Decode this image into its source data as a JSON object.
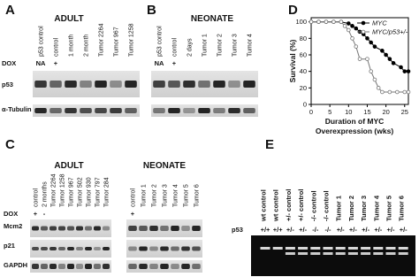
{
  "panels": {
    "A": {
      "label": "A",
      "title": "ADULT",
      "lanes": [
        "p53 control",
        "control",
        "1 month",
        "2 month",
        "Tumor 2264",
        "Tumor 967",
        "Tumor 1258"
      ],
      "rows": [
        "DOX",
        "p53",
        "α-Tubulin"
      ],
      "dox": [
        "NA",
        "+"
      ]
    },
    "B": {
      "label": "B",
      "title": "NEONATE",
      "lanes": [
        "p53 control",
        "control",
        "2 days",
        "Tumor 1",
        "Tumor 2",
        "Tumor 3",
        "Tumor 4"
      ],
      "rows": [
        "DOX",
        "p53",
        "α-Tubulin"
      ],
      "dox": [
        "NA",
        "+"
      ]
    },
    "C": {
      "label": "C",
      "groups": [
        "ADULT",
        "NEONATE"
      ],
      "adult_lanes": [
        "control",
        "2 months",
        "Tumor 2264",
        "Tumor 1258",
        "Tumor 967",
        "Tumor 502",
        "Tumor 930",
        "Tumor 797",
        "Tumor 284"
      ],
      "neonate_lanes": [
        "control",
        "Tumor 1",
        "Tumor 2",
        "Tumor 3",
        "Tumor 4",
        "Tumor 5",
        "Tumor 6"
      ],
      "rows": [
        "DOX",
        "Mcm2",
        "p21",
        "GAPDH"
      ],
      "adult_dox": [
        "+",
        "-"
      ],
      "neonate_dox": [
        "+"
      ]
    },
    "E": {
      "label": "E",
      "lanes": [
        "wt control",
        "wt control",
        "+/- control",
        "+/- control",
        "-/- control",
        "-/- control",
        "Tumor 1",
        "Tumor 2",
        "Tumor 3",
        "Tumor 4",
        "Tumor 5",
        "Tumor 6"
      ],
      "row": "p53",
      "genotypes": [
        "+/+",
        "+/+",
        "+/-",
        "+/-",
        "-/-",
        "-/-",
        "+/-",
        "+/-",
        "+/-",
        "+/-",
        "+/-",
        "+/-"
      ]
    }
  },
  "chart_data": {
    "type": "line",
    "label": "D",
    "ylabel": "Survival (%)",
    "xlabel": [
      "Duration of MYC",
      "Overexpression (wks)"
    ],
    "xlim": [
      0,
      26
    ],
    "ylim": [
      0,
      105
    ],
    "xticks": [
      0,
      5,
      10,
      15,
      20,
      25
    ],
    "yticks": [
      0,
      20,
      40,
      60,
      80,
      100
    ],
    "legend": "upper right",
    "series": [
      {
        "name": "MYC",
        "color": "#000000",
        "marker": "filled",
        "x": [
          0,
          2,
          4,
          6,
          8,
          10,
          11,
          12,
          13,
          14,
          15,
          16,
          17,
          19,
          20,
          21,
          22,
          24,
          25,
          26
        ],
        "values": [
          100,
          100,
          100,
          100,
          100,
          98,
          95,
          92,
          88,
          85,
          80,
          75,
          70,
          65,
          60,
          55,
          50,
          45,
          40,
          40
        ]
      },
      {
        "name": "MYC/p53+/-",
        "color": "#777777",
        "marker": "open",
        "x": [
          0,
          2,
          4,
          6,
          8,
          9,
          10,
          11,
          12,
          13,
          15,
          16,
          17,
          18,
          19,
          21,
          23,
          25,
          26
        ],
        "values": [
          100,
          100,
          100,
          100,
          100,
          95,
          90,
          80,
          70,
          55,
          55,
          40,
          30,
          20,
          15,
          15,
          15,
          15,
          15
        ]
      }
    ]
  }
}
